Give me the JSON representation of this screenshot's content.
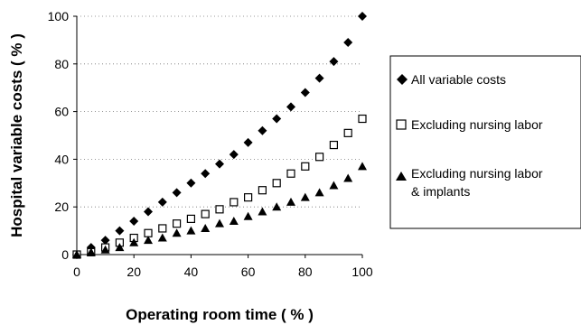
{
  "chart_data": {
    "type": "scatter",
    "title": "",
    "xlabel": "Operating room time ( % )",
    "ylabel": "Hospital variable costs ( % )",
    "xlim": [
      0,
      100
    ],
    "ylim": [
      0,
      100
    ],
    "x_ticks": [
      "0",
      "20",
      "40",
      "60",
      "80",
      "100"
    ],
    "y_ticks": [
      "0",
      "20",
      "40",
      "60",
      "80",
      "100"
    ],
    "grid": "horizontal dotted",
    "legend_placement": "right",
    "series": [
      {
        "name": "All variable costs",
        "marker": "filled-diamond",
        "color": "#000000",
        "x": [
          0,
          5,
          10,
          15,
          20,
          25,
          30,
          35,
          40,
          45,
          50,
          55,
          60,
          65,
          70,
          75,
          80,
          85,
          90,
          95,
          100
        ],
        "y": [
          0,
          3,
          6,
          10,
          14,
          18,
          22,
          26,
          30,
          34,
          38,
          42,
          47,
          52,
          57,
          62,
          68,
          74,
          81,
          89,
          100
        ]
      },
      {
        "name": "Excluding nursing labor",
        "marker": "open-square",
        "color": "#000000",
        "x": [
          0,
          5,
          10,
          15,
          20,
          25,
          30,
          35,
          40,
          45,
          50,
          55,
          60,
          65,
          70,
          75,
          80,
          85,
          90,
          95,
          100
        ],
        "y": [
          0,
          1,
          3,
          5,
          7,
          9,
          11,
          13,
          15,
          17,
          19,
          22,
          24,
          27,
          30,
          34,
          37,
          41,
          46,
          51,
          57
        ]
      },
      {
        "name": "Excluding nursing labor & implants",
        "marker": "filled-triangle",
        "color": "#000000",
        "x": [
          0,
          5,
          10,
          15,
          20,
          25,
          30,
          35,
          40,
          45,
          50,
          55,
          60,
          65,
          70,
          75,
          80,
          85,
          90,
          95,
          100
        ],
        "y": [
          0,
          1,
          2,
          3,
          5,
          6,
          7,
          9,
          10,
          11,
          13,
          14,
          16,
          18,
          20,
          22,
          24,
          26,
          29,
          32,
          37
        ]
      }
    ]
  },
  "legend": {
    "item1": "All variable costs",
    "item2": "Excluding nursing labor",
    "item3_line1": "Excluding nursing labor",
    "item3_line2": "& implants"
  }
}
